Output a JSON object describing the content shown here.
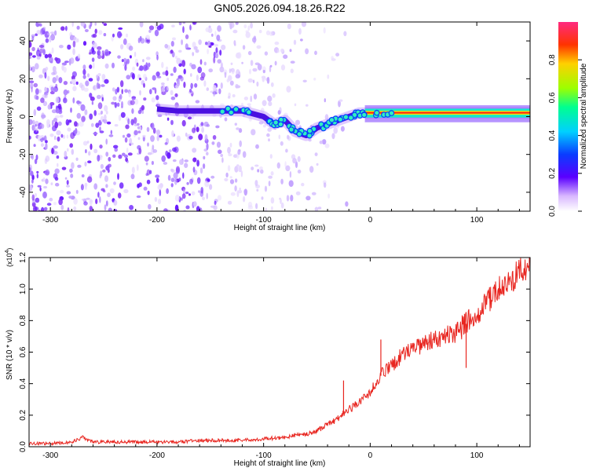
{
  "title": "GN05.2026.094.18.26.R22",
  "colors": {
    "line": "#e8251f",
    "axis": "#000000",
    "scatter": "#7a1cf0",
    "track_core": "#ff1c1c",
    "track_glow": "#1cffd0"
  },
  "chart_data": [
    {
      "type": "heatmap",
      "title": "",
      "xlabel": "Height of straight line (km)",
      "ylabel": "Frequency (Hz)",
      "xlim": [
        -320,
        150
      ],
      "ylim": [
        -50,
        50
      ],
      "xticks": [
        -300,
        -200,
        -100,
        0,
        100
      ],
      "yticks": [
        -40,
        -20,
        0,
        20,
        40
      ],
      "xtick_labels": [
        "-300",
        "-200",
        "-100",
        "0",
        "100"
      ],
      "ytick_labels": [
        "-40",
        "-20",
        "0",
        "20",
        "40"
      ],
      "track": {
        "x": [
          -200,
          -180,
          -160,
          -140,
          -120,
          -100,
          -90,
          -80,
          -70,
          -60,
          -50,
          -40,
          -30,
          -20,
          -10,
          0,
          20,
          50,
          85,
          100,
          150
        ],
        "y": [
          4,
          3,
          3,
          3,
          3,
          0,
          -4,
          -2,
          -8,
          -10,
          -6,
          -4,
          -2,
          0,
          2,
          2,
          2,
          2,
          2,
          2,
          2
        ]
      },
      "noise_extent_x": [
        -320,
        -20
      ],
      "colorbar": {
        "label": "Normalized spectral amplitude",
        "range": [
          0,
          1
        ],
        "ticks": [
          0.0,
          0.2,
          0.4,
          0.6,
          0.8
        ],
        "tick_labels": [
          "0.0",
          "0.2",
          "0.4",
          "0.6",
          "0.8"
        ]
      }
    },
    {
      "type": "line",
      "title": "",
      "xlabel": "Height of straight line (km)",
      "ylabel": "SNR (10 * v/v)",
      "scale_label": "(x10",
      "scale_exponent": "4",
      "scale_close": ")",
      "xlim": [
        -320,
        150
      ],
      "ylim": [
        0,
        1.2
      ],
      "xticks": [
        -300,
        -200,
        -100,
        0,
        100
      ],
      "yticks": [
        0.0,
        0.2,
        0.4,
        0.6,
        0.8,
        1.0,
        1.2
      ],
      "xtick_labels": [
        "-300",
        "-200",
        "-100",
        "0",
        "100"
      ],
      "ytick_labels": [
        "0.0",
        "0.2",
        "0.4",
        "0.6",
        "0.8",
        "1.0",
        "1.2"
      ],
      "series": [
        {
          "name": "SNR",
          "x": [
            -320,
            -300,
            -280,
            -270,
            -260,
            -240,
            -220,
            -200,
            -180,
            -160,
            -140,
            -120,
            -100,
            -80,
            -60,
            -50,
            -40,
            -30,
            -20,
            -10,
            0,
            10,
            20,
            30,
            40,
            50,
            60,
            70,
            80,
            85,
            88,
            90,
            92,
            95,
            100,
            110,
            120,
            130,
            140,
            150
          ],
          "y": [
            0.02,
            0.02,
            0.03,
            0.06,
            0.03,
            0.03,
            0.03,
            0.03,
            0.03,
            0.04,
            0.04,
            0.04,
            0.05,
            0.06,
            0.08,
            0.1,
            0.14,
            0.18,
            0.24,
            0.28,
            0.35,
            0.45,
            0.52,
            0.58,
            0.62,
            0.65,
            0.68,
            0.7,
            0.72,
            0.74,
            0.76,
            0.55,
            0.8,
            0.8,
            0.84,
            0.92,
            1.0,
            1.05,
            1.1,
            1.16
          ]
        }
      ],
      "spikes": [
        {
          "x": 10,
          "y": 0.68
        },
        {
          "x": 90,
          "y": 0.5
        },
        {
          "x": -25,
          "y": 0.42
        }
      ]
    }
  ]
}
